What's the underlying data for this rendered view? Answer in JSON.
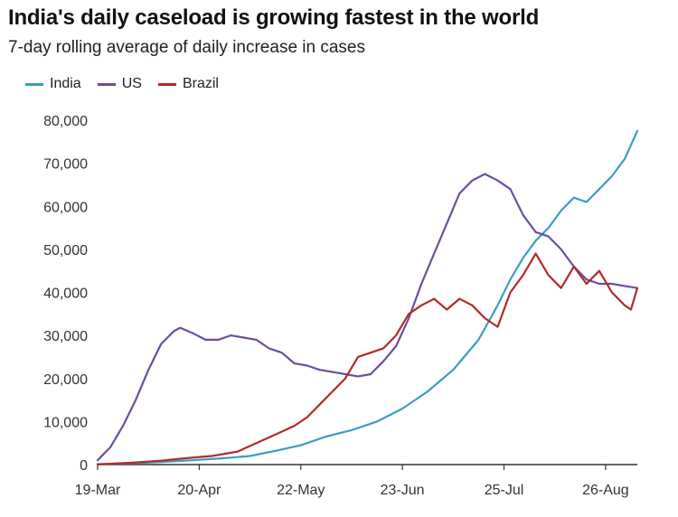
{
  "chart_data": {
    "type": "line",
    "title": "India's daily caseload is growing fastest in the world",
    "subtitle": "7-day rolling average of daily increase in cases",
    "xlabel": "",
    "ylabel": "",
    "ylim": [
      0,
      80000
    ],
    "yticks": [
      0,
      10000,
      20000,
      30000,
      40000,
      50000,
      60000,
      70000,
      80000
    ],
    "ytick_labels": [
      "0",
      "10,000",
      "20,000",
      "30,000",
      "40,000",
      "50,000",
      "60,000",
      "70,000",
      "80,000"
    ],
    "xticks": [
      {
        "day": 0,
        "label": "19-Mar"
      },
      {
        "day": 32,
        "label": "20-Apr"
      },
      {
        "day": 64,
        "label": "22-May"
      },
      {
        "day": 96,
        "label": "23-Jun"
      },
      {
        "day": 128,
        "label": "25-Jul"
      },
      {
        "day": 160,
        "label": "26-Aug"
      }
    ],
    "x_start": "19-Mar",
    "grid": false,
    "legend_position": "top-left",
    "series": [
      {
        "name": "India",
        "color": "#3a9ec0",
        "points": [
          [
            0,
            100
          ],
          [
            10,
            300
          ],
          [
            20,
            600
          ],
          [
            30,
            1000
          ],
          [
            40,
            1500
          ],
          [
            48,
            2000
          ],
          [
            56,
            3200
          ],
          [
            64,
            4500
          ],
          [
            72,
            6500
          ],
          [
            80,
            8000
          ],
          [
            88,
            10000
          ],
          [
            96,
            13000
          ],
          [
            104,
            17000
          ],
          [
            112,
            22000
          ],
          [
            120,
            29000
          ],
          [
            126,
            37000
          ],
          [
            130,
            43000
          ],
          [
            134,
            48000
          ],
          [
            138,
            52000
          ],
          [
            142,
            55000
          ],
          [
            146,
            59000
          ],
          [
            150,
            62000
          ],
          [
            154,
            61000
          ],
          [
            158,
            64000
          ],
          [
            162,
            67000
          ],
          [
            166,
            71000
          ],
          [
            170,
            77500
          ]
        ]
      },
      {
        "name": "US",
        "color": "#6b4e9e",
        "points": [
          [
            0,
            1000
          ],
          [
            4,
            4000
          ],
          [
            8,
            9000
          ],
          [
            12,
            15000
          ],
          [
            16,
            22000
          ],
          [
            20,
            28000
          ],
          [
            24,
            31000
          ],
          [
            26,
            31800
          ],
          [
            30,
            30500
          ],
          [
            34,
            29000
          ],
          [
            38,
            29000
          ],
          [
            42,
            30000
          ],
          [
            46,
            29500
          ],
          [
            50,
            29000
          ],
          [
            54,
            27000
          ],
          [
            58,
            26000
          ],
          [
            62,
            23500
          ],
          [
            66,
            23000
          ],
          [
            70,
            22000
          ],
          [
            74,
            21500
          ],
          [
            78,
            21000
          ],
          [
            82,
            20500
          ],
          [
            86,
            21000
          ],
          [
            90,
            24000
          ],
          [
            94,
            27500
          ],
          [
            98,
            34000
          ],
          [
            102,
            42000
          ],
          [
            106,
            49000
          ],
          [
            110,
            56000
          ],
          [
            114,
            63000
          ],
          [
            118,
            66000
          ],
          [
            122,
            67500
          ],
          [
            126,
            66000
          ],
          [
            130,
            64000
          ],
          [
            134,
            58000
          ],
          [
            138,
            54000
          ],
          [
            142,
            53000
          ],
          [
            146,
            50000
          ],
          [
            150,
            46000
          ],
          [
            154,
            43000
          ],
          [
            158,
            42000
          ],
          [
            162,
            42000
          ],
          [
            166,
            41500
          ],
          [
            170,
            41000
          ]
        ]
      },
      {
        "name": "Brazil",
        "color": "#b22a2a",
        "points": [
          [
            0,
            50
          ],
          [
            10,
            400
          ],
          [
            20,
            900
          ],
          [
            28,
            1500
          ],
          [
            36,
            2000
          ],
          [
            44,
            3000
          ],
          [
            50,
            5000
          ],
          [
            56,
            7000
          ],
          [
            62,
            9000
          ],
          [
            66,
            11000
          ],
          [
            70,
            14000
          ],
          [
            74,
            17000
          ],
          [
            78,
            20000
          ],
          [
            82,
            25000
          ],
          [
            86,
            26000
          ],
          [
            90,
            27000
          ],
          [
            94,
            30000
          ],
          [
            98,
            35000
          ],
          [
            102,
            37000
          ],
          [
            106,
            38500
          ],
          [
            110,
            36000
          ],
          [
            114,
            38500
          ],
          [
            118,
            37000
          ],
          [
            122,
            34000
          ],
          [
            126,
            32000
          ],
          [
            130,
            40000
          ],
          [
            134,
            44000
          ],
          [
            138,
            49000
          ],
          [
            142,
            44000
          ],
          [
            146,
            41000
          ],
          [
            150,
            46000
          ],
          [
            154,
            42000
          ],
          [
            158,
            45000
          ],
          [
            162,
            40000
          ],
          [
            166,
            37000
          ],
          [
            168,
            36000
          ],
          [
            170,
            41000
          ]
        ]
      }
    ]
  }
}
